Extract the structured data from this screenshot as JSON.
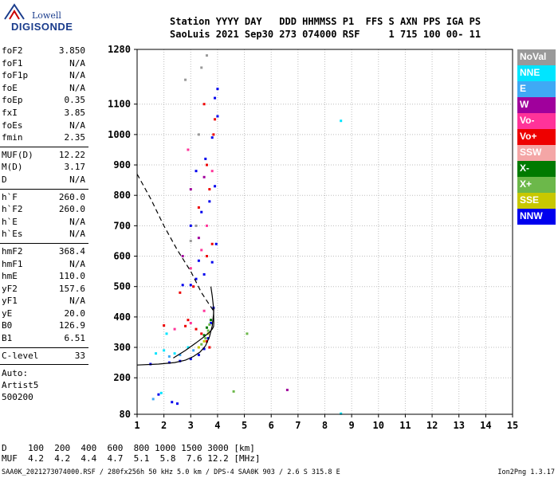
{
  "logo": {
    "line1": "Lowell",
    "line2": "DIGISONDE"
  },
  "header": {
    "line1": "Station YYYY DAY   DDD HHMMSS P1  FFS S AXN PPS IGA PS",
    "line2": "SaoLuis 2021 Sep30 273 074000 RSF     1 715 100 00- 11"
  },
  "params": {
    "group1": [
      {
        "k": "foF2",
        "v": "3.850"
      },
      {
        "k": "foF1",
        "v": "N/A"
      },
      {
        "k": "foF1p",
        "v": "N/A"
      },
      {
        "k": "foE",
        "v": "N/A"
      },
      {
        "k": "foEp",
        "v": "0.35"
      },
      {
        "k": "fxI",
        "v": "3.85"
      },
      {
        "k": "foEs",
        "v": "N/A"
      },
      {
        "k": "fmin",
        "v": "2.35"
      }
    ],
    "group2": [
      {
        "k": "MUF(D)",
        "v": "12.22"
      },
      {
        "k": "M(D)",
        "v": "3.17"
      },
      {
        "k": "D",
        "v": "N/A"
      }
    ],
    "group3": [
      {
        "k": "h`F",
        "v": "260.0"
      },
      {
        "k": "h`F2",
        "v": "260.0"
      },
      {
        "k": "h`E",
        "v": "N/A"
      },
      {
        "k": "h`Es",
        "v": "N/A"
      }
    ],
    "group4": [
      {
        "k": "hmF2",
        "v": "368.4"
      },
      {
        "k": "hmF1",
        "v": "N/A"
      },
      {
        "k": "hmE",
        "v": "110.0"
      },
      {
        "k": "yF2",
        "v": "157.6"
      },
      {
        "k": "yF1",
        "v": "N/A"
      },
      {
        "k": "yE",
        "v": "20.0"
      },
      {
        "k": "B0",
        "v": "126.9"
      },
      {
        "k": "B1",
        "v": "6.51"
      }
    ],
    "group5": [
      {
        "k": "C-level",
        "v": "33"
      }
    ],
    "auto_lines": [
      "Auto:",
      "Artist5",
      "500200"
    ]
  },
  "legend": [
    {
      "label": "NoVal",
      "color": "#999999"
    },
    {
      "label": "NNE",
      "color": "#00e5ff"
    },
    {
      "label": "E",
      "color": "#3fa9f5"
    },
    {
      "label": "W",
      "color": "#a0009c"
    },
    {
      "label": "Vo-",
      "color": "#ff3399"
    },
    {
      "label": "Vo+",
      "color": "#ee0000"
    },
    {
      "label": "SSW",
      "color": "#f4a6a6"
    },
    {
      "label": "X-",
      "color": "#007a00"
    },
    {
      "label": "X+",
      "color": "#6cb84a"
    },
    {
      "label": "SSE",
      "color": "#c8c800"
    },
    {
      "label": "NNW",
      "color": "#0000ee"
    }
  ],
  "dtable": {
    "line1": "D    100  200  400  600  800 1000 1500 3000 [km]",
    "line2": "MUF  4.2  4.2  4.4  4.7  5.1  5.8  7.6 12.2 [MHz]"
  },
  "footer": "SAA0K_2021273074000.RSF / 280fx256h 50 kHz 5.0 km / DPS-4 SAA0K 903 / 2.6 S 315.8 E",
  "version": "Ion2Png 1.3.17",
  "chart_data": {
    "type": "scatter",
    "x_ticks": [
      1,
      2,
      3,
      4,
      5,
      6,
      7,
      8,
      9,
      10,
      11,
      12,
      13,
      14,
      15
    ],
    "xlim": [
      1,
      15
    ],
    "y_ticks": [
      80,
      200,
      300,
      400,
      500,
      600,
      700,
      800,
      900,
      1000,
      1100,
      1280
    ],
    "ylim": [
      80,
      1280
    ],
    "grid": true,
    "legend_position": "right",
    "series": [
      {
        "color": "#0000ee",
        "points": [
          [
            1.5,
            245
          ],
          [
            2.2,
            250
          ],
          [
            2.6,
            255
          ],
          [
            3.0,
            262
          ],
          [
            3.3,
            275
          ],
          [
            3.5,
            295
          ],
          [
            3.65,
            330
          ],
          [
            3.75,
            380
          ],
          [
            3.85,
            430
          ],
          [
            2.7,
            505
          ],
          [
            3.2,
            525
          ],
          [
            3.5,
            540
          ],
          [
            3.8,
            580
          ],
          [
            3.95,
            640
          ],
          [
            3.0,
            700
          ],
          [
            3.4,
            745
          ],
          [
            3.7,
            780
          ],
          [
            3.9,
            830
          ],
          [
            3.2,
            880
          ],
          [
            3.55,
            920
          ],
          [
            3.8,
            990
          ],
          [
            4.0,
            1060
          ],
          [
            3.9,
            1120
          ],
          [
            4.0,
            1150
          ],
          [
            1.8,
            145
          ],
          [
            2.3,
            120
          ],
          [
            2.5,
            115
          ],
          [
            3.0,
            505
          ],
          [
            3.3,
            585
          ]
        ]
      },
      {
        "color": "#ee0000",
        "points": [
          [
            2.0,
            372
          ],
          [
            2.8,
            370
          ],
          [
            3.2,
            360
          ],
          [
            3.4,
            345
          ],
          [
            3.6,
            320
          ],
          [
            3.7,
            300
          ],
          [
            2.6,
            480
          ],
          [
            3.1,
            500
          ],
          [
            3.6,
            600
          ],
          [
            3.8,
            640
          ],
          [
            3.3,
            760
          ],
          [
            3.7,
            820
          ],
          [
            3.6,
            900
          ],
          [
            3.85,
            1000
          ],
          [
            3.9,
            1050
          ],
          [
            3.5,
            1100
          ],
          [
            2.9,
            390
          ]
        ]
      },
      {
        "color": "#ff3399",
        "points": [
          [
            2.4,
            360
          ],
          [
            3.0,
            380
          ],
          [
            3.5,
            420
          ],
          [
            3.0,
            560
          ],
          [
            3.4,
            620
          ],
          [
            3.6,
            700
          ],
          [
            3.8,
            880
          ],
          [
            2.9,
            950
          ]
        ]
      },
      {
        "color": "#a0009c",
        "points": [
          [
            2.7,
            600
          ],
          [
            3.3,
            660
          ],
          [
            3.5,
            860
          ],
          [
            3.0,
            820
          ],
          [
            6.6,
            160
          ]
        ]
      },
      {
        "color": "#00e5ff",
        "points": [
          [
            1.7,
            280
          ],
          [
            2.0,
            290
          ],
          [
            2.4,
            280
          ],
          [
            2.9,
            300
          ],
          [
            1.9,
            150
          ],
          [
            8.6,
            1045
          ],
          [
            8.6,
            82
          ],
          [
            2.1,
            345
          ]
        ]
      },
      {
        "color": "#3fa9f5",
        "points": [
          [
            2.2,
            270
          ],
          [
            2.6,
            275
          ],
          [
            3.1,
            290
          ],
          [
            1.6,
            130
          ]
        ]
      },
      {
        "color": "#6cb84a",
        "points": [
          [
            3.4,
            310
          ],
          [
            3.55,
            330
          ],
          [
            3.65,
            355
          ],
          [
            3.7,
            375
          ],
          [
            5.1,
            345
          ],
          [
            4.6,
            155
          ]
        ]
      },
      {
        "color": "#007a00",
        "points": [
          [
            3.5,
            340
          ],
          [
            3.6,
            365
          ],
          [
            3.75,
            390
          ]
        ]
      },
      {
        "color": "#c8c800",
        "points": [
          [
            3.3,
            300
          ],
          [
            3.5,
            320
          ],
          [
            3.65,
            345
          ]
        ]
      },
      {
        "color": "#999999",
        "points": [
          [
            3.0,
            650
          ],
          [
            3.2,
            700
          ],
          [
            3.3,
            1000
          ],
          [
            3.6,
            1260
          ],
          [
            2.8,
            1180
          ],
          [
            3.4,
            1220
          ]
        ]
      }
    ],
    "curves": [
      {
        "name": "trace",
        "style": "solid",
        "x": [
          1.0,
          1.8,
          2.4,
          2.8,
          3.1,
          3.35,
          3.55,
          3.7,
          3.8,
          3.85,
          3.86
        ],
        "y": [
          242,
          245,
          250,
          258,
          270,
          285,
          305,
          335,
          370,
          410,
          430
        ]
      },
      {
        "name": "profile",
        "style": "solid",
        "x": [
          2.35,
          2.8,
          3.2,
          3.5,
          3.7,
          3.8,
          3.85,
          3.86,
          3.85,
          3.8,
          3.75
        ],
        "y": [
          265,
          290,
          315,
          335,
          350,
          360,
          368,
          380,
          430,
          470,
          500
        ]
      },
      {
        "name": "model",
        "style": "dashed",
        "x": [
          1.0,
          1.5,
          2.0,
          2.5,
          3.0,
          3.4,
          3.7,
          3.85
        ],
        "y": [
          870,
          790,
          700,
          620,
          550,
          480,
          440,
          420
        ]
      }
    ]
  }
}
